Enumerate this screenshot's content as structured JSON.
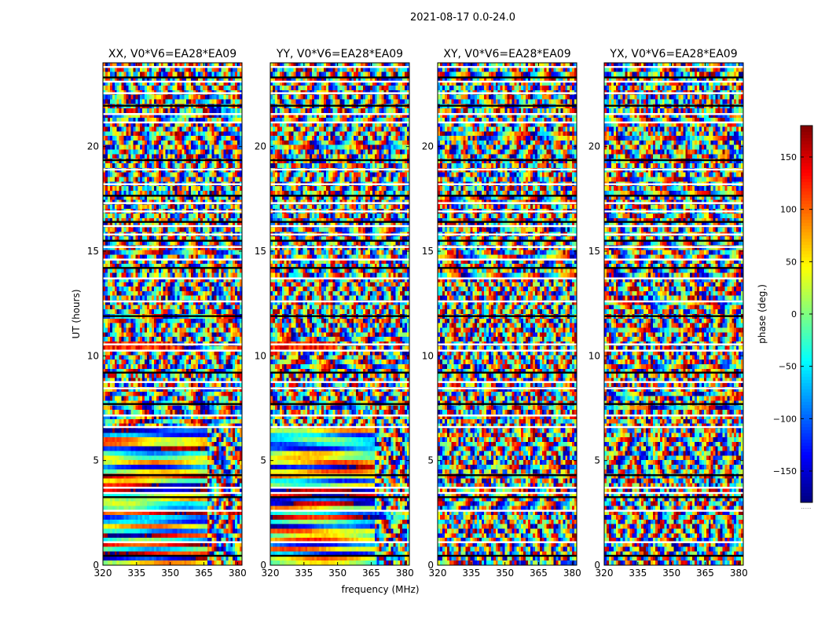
{
  "figure": {
    "suptitle": "2021-08-17 0.0-24.0",
    "xlabel": "frequency (MHz)",
    "ylabel": "UT (hours)",
    "colorbar_label": "phase (deg.)",
    "colorbar_corner_text": "......"
  },
  "chart_data": {
    "type": "heatmap",
    "colormap": "jet",
    "x_range": [
      320,
      382
    ],
    "x_ticks": [
      "320",
      "335",
      "350",
      "365",
      "380"
    ],
    "y_range": [
      0,
      24
    ],
    "y_ticks": [
      "0",
      "5",
      "10",
      "15",
      "20"
    ],
    "color_range": [
      -180,
      180
    ],
    "colorbar_ticks": [
      "150",
      "100",
      "50",
      "0",
      "−50",
      "−100",
      "−150"
    ],
    "colorbar_tick_values": [
      150,
      100,
      50,
      0,
      -50,
      -100,
      -150
    ],
    "panels": [
      {
        "title": "XX, V0*V6=EA28*EA09",
        "pol": "XX"
      },
      {
        "title": "YY, V0*V6=EA28*EA09",
        "pol": "YY"
      },
      {
        "title": "XY, V0*V6=EA28*EA09",
        "pol": "XY"
      },
      {
        "title": "YX, V0*V6=EA28*EA09",
        "pol": "YX"
      }
    ],
    "flagged_hours": [
      0.45,
      1.1,
      2.6,
      3.25,
      3.45,
      3.7,
      4.3,
      6.6,
      7.15,
      7.7,
      8.45,
      8.75,
      9.2,
      10.25,
      10.55,
      11.9,
      12.6,
      13.7,
      14.2,
      14.6,
      15.2,
      15.5,
      15.8,
      16.2,
      16.4,
      16.9,
      17.3,
      17.65,
      18.2,
      18.9,
      19.35,
      21.15,
      21.55,
      21.95,
      22.55,
      23.1,
      23.3,
      23.8
    ],
    "grid": false,
    "legend": "colorbar-right"
  }
}
